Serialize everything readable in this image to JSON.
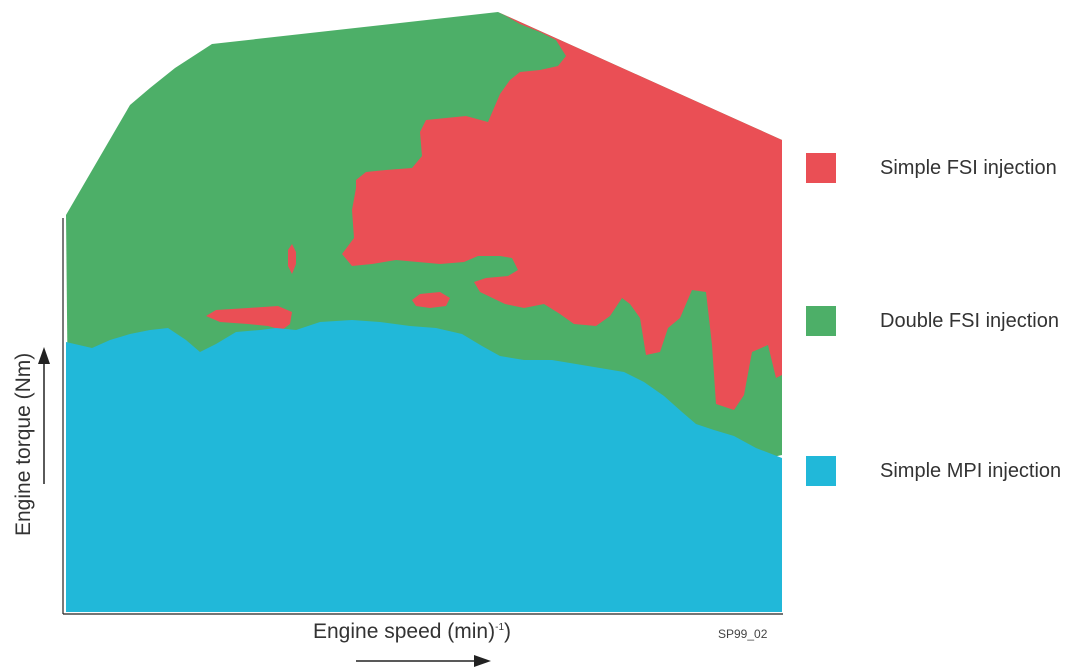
{
  "legend": [
    {
      "label": "Simple FSI injection",
      "color": "#ea4f55"
    },
    {
      "label": "Double FSI injection",
      "color": "#4daf68"
    },
    {
      "label": "Simple MPI injection",
      "color": "#21b8d9"
    }
  ],
  "axes": {
    "x_label_main": "Engine speed (min)",
    "x_label_sup": "-1",
    "x_label_tail": ")",
    "y_label": "Engine torque (Nm)"
  },
  "figure_code": "SP99_02",
  "colors": {
    "region_green": "#4daf68",
    "region_red": "#ea4f55",
    "region_blue": "#21b8d9",
    "axis": "#222222"
  }
}
